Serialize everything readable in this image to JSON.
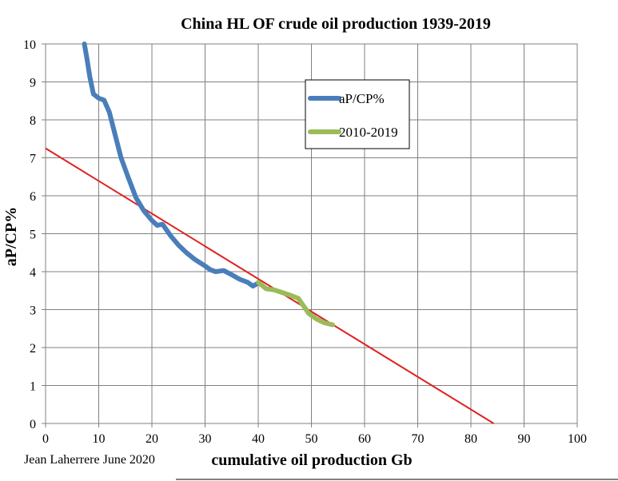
{
  "chart_data": {
    "type": "line",
    "title": "China HL OF crude oil production 1939-2019",
    "xlabel": "cumulative oil production Gb",
    "ylabel": "aP/CP%",
    "xlim": [
      0,
      100
    ],
    "ylim": [
      0,
      10
    ],
    "x_ticks": [
      0,
      10,
      20,
      30,
      40,
      50,
      60,
      70,
      80,
      90,
      100
    ],
    "y_ticks": [
      0,
      1,
      2,
      3,
      4,
      5,
      6,
      7,
      8,
      9,
      10
    ],
    "grid": true,
    "legend": "top-center",
    "credit": "Jean Laherrere June 2020",
    "series": [
      {
        "name": "aP/CP%",
        "color": "#4a7ebb",
        "points": [
          [
            7.3,
            10.0
          ],
          [
            7.8,
            9.6
          ],
          [
            8.3,
            9.15
          ],
          [
            9.0,
            8.68
          ],
          [
            10.0,
            8.57
          ],
          [
            11.0,
            8.52
          ],
          [
            12.0,
            8.2
          ],
          [
            13.0,
            7.65
          ],
          [
            14.2,
            7.0
          ],
          [
            15.5,
            6.5
          ],
          [
            17.0,
            5.95
          ],
          [
            18.5,
            5.6
          ],
          [
            20.0,
            5.35
          ],
          [
            21.0,
            5.22
          ],
          [
            22.0,
            5.25
          ],
          [
            23.5,
            4.95
          ],
          [
            25.0,
            4.7
          ],
          [
            26.5,
            4.5
          ],
          [
            28.0,
            4.33
          ],
          [
            30.0,
            4.15
          ],
          [
            31.0,
            4.05
          ],
          [
            32.0,
            4.0
          ],
          [
            33.5,
            4.03
          ],
          [
            35.0,
            3.92
          ],
          [
            36.5,
            3.8
          ],
          [
            38.0,
            3.72
          ],
          [
            39.0,
            3.62
          ],
          [
            40.0,
            3.7
          ]
        ]
      },
      {
        "name": "2010-2019",
        "color": "#9bbb59",
        "points": [
          [
            40.0,
            3.72
          ],
          [
            41.5,
            3.55
          ],
          [
            43.0,
            3.52
          ],
          [
            44.5,
            3.45
          ],
          [
            46.0,
            3.38
          ],
          [
            47.5,
            3.3
          ],
          [
            48.5,
            3.1
          ],
          [
            49.5,
            2.9
          ],
          [
            51.0,
            2.75
          ],
          [
            52.5,
            2.65
          ],
          [
            54.0,
            2.6
          ]
        ]
      }
    ],
    "trendline": {
      "color": "#e02020",
      "points": [
        [
          0,
          7.25
        ],
        [
          84.3,
          0
        ]
      ]
    }
  }
}
